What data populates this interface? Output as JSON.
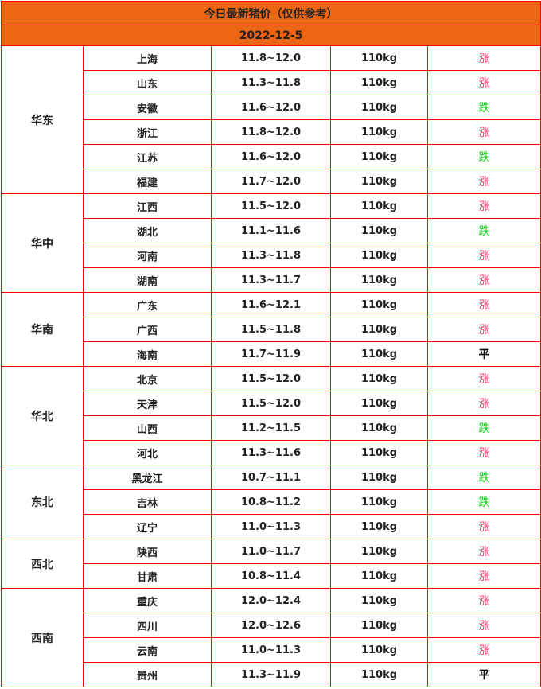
{
  "title": "今日最新猪价（仅供参考）",
  "date": "2022-12-5",
  "colors": {
    "header_bg": "#eb6513",
    "border": "#ff0000",
    "up": "#ff3366",
    "down": "#11cc11",
    "flat": "#111111"
  },
  "regions": [
    {
      "name": "华东",
      "rows": [
        {
          "province": "上海",
          "price": "11.8~12.0",
          "weight": "110kg",
          "trend": "涨"
        },
        {
          "province": "山东",
          "price": "11.3~11.8",
          "weight": "110kg",
          "trend": "涨"
        },
        {
          "province": "安徽",
          "price": "11.6~12.0",
          "weight": "110kg",
          "trend": "跌"
        },
        {
          "province": "浙江",
          "price": "11.8~12.0",
          "weight": "110kg",
          "trend": "涨"
        },
        {
          "province": "江苏",
          "price": "11.6~12.0",
          "weight": "110kg",
          "trend": "跌"
        },
        {
          "province": "福建",
          "price": "11.7~12.0",
          "weight": "110kg",
          "trend": "涨"
        }
      ]
    },
    {
      "name": "华中",
      "rows": [
        {
          "province": "江西",
          "price": "11.5~12.0",
          "weight": "110kg",
          "trend": "涨"
        },
        {
          "province": "湖北",
          "price": "11.1~11.6",
          "weight": "110kg",
          "trend": "跌"
        },
        {
          "province": "河南",
          "price": "11.3~11.8",
          "weight": "110kg",
          "trend": "涨"
        },
        {
          "province": "湖南",
          "price": "11.3~11.7",
          "weight": "110kg",
          "trend": "涨"
        }
      ]
    },
    {
      "name": "华南",
      "rows": [
        {
          "province": "广东",
          "price": "11.6~12.1",
          "weight": "110kg",
          "trend": "涨"
        },
        {
          "province": "广西",
          "price": "11.5~11.8",
          "weight": "110kg",
          "trend": "涨"
        },
        {
          "province": "海南",
          "price": "11.7~11.9",
          "weight": "110kg",
          "trend": "平"
        }
      ]
    },
    {
      "name": "华北",
      "rows": [
        {
          "province": "北京",
          "price": "11.5~12.0",
          "weight": "110kg",
          "trend": "涨"
        },
        {
          "province": "天津",
          "price": "11.5~12.0",
          "weight": "110kg",
          "trend": "涨"
        },
        {
          "province": "山西",
          "price": "11.2~11.5",
          "weight": "110kg",
          "trend": "跌"
        },
        {
          "province": "河北",
          "price": "11.3~11.6",
          "weight": "110kg",
          "trend": "涨"
        }
      ]
    },
    {
      "name": "东北",
      "rows": [
        {
          "province": "黑龙江",
          "price": "10.7~11.1",
          "weight": "110kg",
          "trend": "跌"
        },
        {
          "province": "吉林",
          "price": "10.8~11.2",
          "weight": "110kg",
          "trend": "跌"
        },
        {
          "province": "辽宁",
          "price": "11.0~11.3",
          "weight": "110kg",
          "trend": "涨"
        }
      ]
    },
    {
      "name": "西北",
      "rows": [
        {
          "province": "陕西",
          "price": "11.0~11.7",
          "weight": "110kg",
          "trend": "涨"
        },
        {
          "province": "甘肃",
          "price": "10.8~11.4",
          "weight": "110kg",
          "trend": "涨"
        }
      ]
    },
    {
      "name": "西南",
      "rows": [
        {
          "province": "重庆",
          "price": "12.0~12.4",
          "weight": "110kg",
          "trend": "涨"
        },
        {
          "province": "四川",
          "price": "12.0~12.6",
          "weight": "110kg",
          "trend": "涨"
        },
        {
          "province": "云南",
          "price": "11.0~11.3",
          "weight": "110kg",
          "trend": "涨"
        },
        {
          "province": "贵州",
          "price": "11.3~11.9",
          "weight": "110kg",
          "trend": "平"
        }
      ]
    }
  ]
}
